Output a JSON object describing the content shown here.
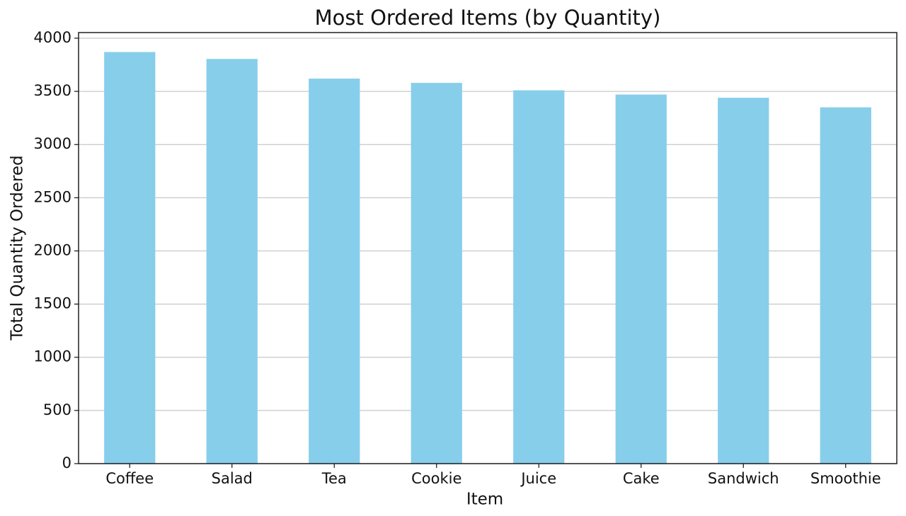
{
  "chart_data": {
    "type": "bar",
    "title": "Most Ordered Items (by Quantity)",
    "x_label": "Item",
    "y_label": "Total Quantity Ordered",
    "categories": [
      "Coffee",
      "Salad",
      "Tea",
      "Cookie",
      "Juice",
      "Cake",
      "Sandwich",
      "Smoothie"
    ],
    "values": [
      3870,
      3805,
      3620,
      3580,
      3510,
      3470,
      3440,
      3350
    ],
    "color": "#87ceeb",
    "ylim": [
      0,
      4053
    ],
    "yticks": [
      0,
      500,
      1000,
      1500,
      2000,
      2500,
      3000,
      3500,
      4000
    ],
    "grid": true
  }
}
